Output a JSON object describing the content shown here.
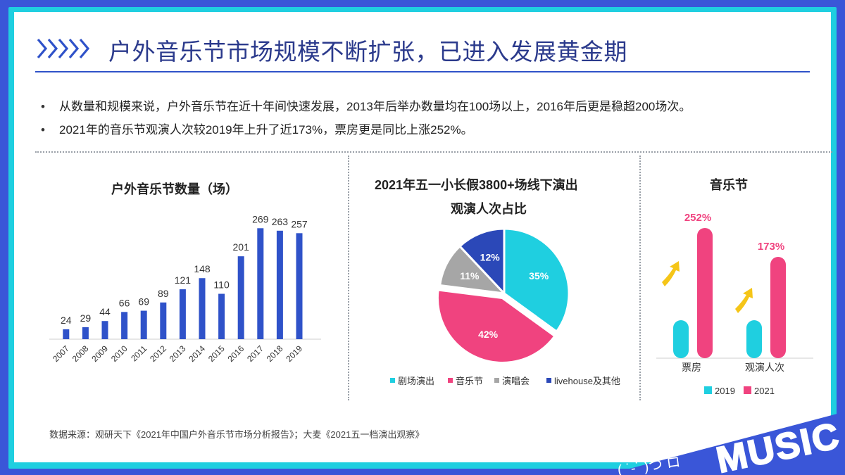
{
  "slide": {
    "title": "户外音乐节市场规模不断扩张，已进入发展黄金期",
    "bullets": [
      "从数量和规模来说，户外音乐节在近十年间快速发展，2013年后举办数量均在100场以上，2016年后更是稳超200场次。",
      "2021年的音乐节观演人次较2019年上升了近173%，票房更是同比上涨252%。"
    ],
    "source": "数据来源：观研天下《2021年中国户外音乐节市场分析报告》；大麦《2021五一档演出观察》",
    "decoration_text": "MUSIC",
    "decoration_face": "( ˙-˙ )つ ロ",
    "bullet_symbol": "•"
  },
  "colors": {
    "bar_blue": "#2f52c9",
    "cyan": "#1fcfe0",
    "pink": "#f0437f",
    "gray": "#a6a6a6",
    "navy": "#2b48b8",
    "title": "#2b3a8c"
  },
  "chart_data": [
    {
      "type": "bar",
      "title": "户外音乐节数量（场）",
      "categories": [
        "2007",
        "2008",
        "2009",
        "2010",
        "2011",
        "2012",
        "2013",
        "2014",
        "2015",
        "2016",
        "2017",
        "2018",
        "2019"
      ],
      "values": [
        24,
        29,
        44,
        66,
        69,
        89,
        121,
        148,
        110,
        201,
        269,
        263,
        257
      ],
      "ylim": [
        0,
        290
      ],
      "grid": false,
      "legend": "none"
    },
    {
      "type": "pie",
      "title_line1": "2021年五一小长假3800+场线下演出",
      "title_line2": "观演人次占比",
      "slices": [
        {
          "label": "剧场演出",
          "value": 35,
          "display": "35%",
          "color": "#1fcfe0"
        },
        {
          "label": "音乐节",
          "value": 42,
          "display": "42%",
          "color": "#f0437f"
        },
        {
          "label": "演唱会",
          "value": 11,
          "display": "11%",
          "color": "#a6a6a6"
        },
        {
          "label": "livehouse及其他",
          "value": 12,
          "display": "12%",
          "color": "#2b48b8"
        }
      ],
      "legend": "bottom"
    },
    {
      "type": "bar",
      "title": "音乐节",
      "categories": [
        "票房",
        "观演人次"
      ],
      "series": [
        {
          "name": "2019",
          "values": [
            1.0,
            1.0
          ],
          "color": "#1fcfe0"
        },
        {
          "name": "2021",
          "values": [
            3.52,
            2.73
          ],
          "color": "#f0437f"
        }
      ],
      "annotations": [
        "252%",
        "173%"
      ],
      "legend": "bottom"
    }
  ]
}
